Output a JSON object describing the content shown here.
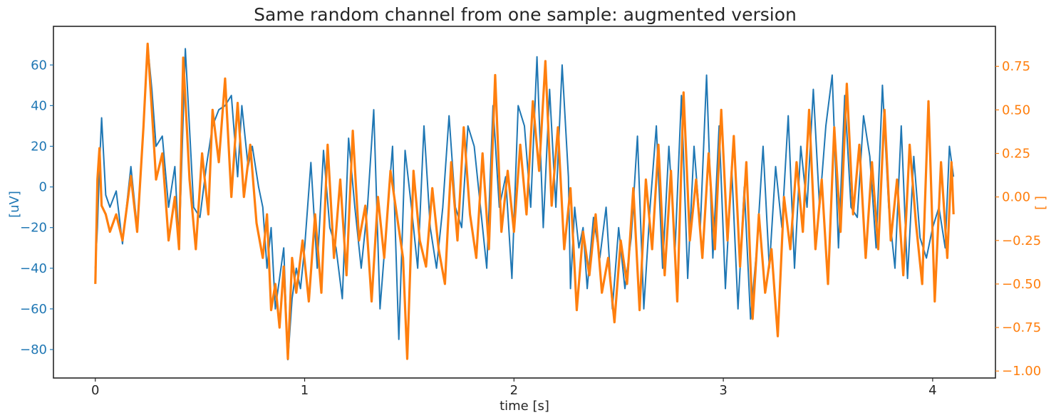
{
  "chart_data": {
    "type": "line",
    "title": "Same random channel from one sample: augmented version",
    "xlabel": "time [s]",
    "ylabel_left": "[uV]",
    "ylabel_right": "[ ]",
    "xlim": [
      -0.2,
      4.3
    ],
    "ylim_left": [
      -94,
      79
    ],
    "ylim_right": [
      -1.04,
      0.98
    ],
    "xticks": [
      0,
      1,
      2,
      3,
      4
    ],
    "yticks_left": [
      -80,
      -60,
      -40,
      -20,
      0,
      20,
      40,
      60
    ],
    "yticks_right": [
      -1.0,
      -0.75,
      -0.5,
      -0.25,
      0.0,
      0.25,
      0.5,
      0.75
    ],
    "xtick_labels": [
      "0",
      "1",
      "2",
      "3",
      "4"
    ],
    "ytick_labels_left": [
      "−80",
      "−60",
      "−40",
      "−20",
      "0",
      "20",
      "40",
      "60"
    ],
    "ytick_labels_right": [
      "−1.00",
      "−0.75",
      "−0.50",
      "−0.25",
      "0.00",
      "0.25",
      "0.50",
      "0.75"
    ],
    "grid": false,
    "legend": "none",
    "colors": {
      "left": "#1f77b4",
      "right": "#ff7f0e",
      "text": "#262626"
    },
    "series": [
      {
        "axis": "left",
        "color": "#1f77b4",
        "x": [
          0.0,
          0.01,
          0.02,
          0.03,
          0.05,
          0.07,
          0.1,
          0.13,
          0.17,
          0.2,
          0.23,
          0.25,
          0.27,
          0.29,
          0.32,
          0.35,
          0.38,
          0.4,
          0.43,
          0.47,
          0.5,
          0.53,
          0.56,
          0.59,
          0.62,
          0.65,
          0.68,
          0.7,
          0.73,
          0.75,
          0.78,
          0.8,
          0.82,
          0.84,
          0.86,
          0.88,
          0.9,
          0.92,
          0.94,
          0.96,
          0.98,
          1.0,
          1.03,
          1.06,
          1.09,
          1.12,
          1.15,
          1.18,
          1.21,
          1.24,
          1.27,
          1.3,
          1.33,
          1.36,
          1.39,
          1.42,
          1.45,
          1.48,
          1.51,
          1.54,
          1.57,
          1.6,
          1.63,
          1.66,
          1.69,
          1.72,
          1.75,
          1.78,
          1.81,
          1.84,
          1.87,
          1.9,
          1.93,
          1.96,
          1.99,
          2.02,
          2.05,
          2.08,
          2.11,
          2.14,
          2.17,
          2.2,
          2.23,
          2.26,
          2.27,
          2.29,
          2.31,
          2.33,
          2.35,
          2.38,
          2.41,
          2.44,
          2.47,
          2.5,
          2.53,
          2.56,
          2.59,
          2.62,
          2.65,
          2.68,
          2.71,
          2.74,
          2.77,
          2.8,
          2.83,
          2.86,
          2.89,
          2.92,
          2.95,
          2.98,
          3.01,
          3.04,
          3.07,
          3.1,
          3.13,
          3.16,
          3.19,
          3.22,
          3.25,
          3.28,
          3.31,
          3.34,
          3.37,
          3.4,
          3.43,
          3.46,
          3.49,
          3.52,
          3.55,
          3.58,
          3.61,
          3.64,
          3.67,
          3.7,
          3.73,
          3.76,
          3.79,
          3.82,
          3.85,
          3.88,
          3.91,
          3.94,
          3.97,
          4.0,
          4.03,
          4.06,
          4.08,
          4.1
        ],
        "y": [
          -40,
          -20,
          10,
          34,
          -4,
          -10,
          -2,
          -28,
          10,
          -20,
          30,
          70,
          48,
          20,
          25,
          -10,
          10,
          -30,
          68,
          -10,
          -15,
          10,
          30,
          38,
          40,
          45,
          5,
          40,
          10,
          20,
          0,
          -10,
          -40,
          -20,
          -60,
          -45,
          -30,
          -85,
          -55,
          -40,
          -50,
          -30,
          12,
          -40,
          18,
          -20,
          -30,
          -55,
          24,
          -10,
          -40,
          -10,
          38,
          -60,
          -20,
          20,
          -75,
          18,
          -10,
          -40,
          30,
          -20,
          -40,
          -10,
          35,
          -10,
          -20,
          30,
          20,
          -10,
          -40,
          40,
          -10,
          5,
          -45,
          40,
          30,
          -10,
          64,
          -20,
          48,
          -10,
          60,
          5,
          -50,
          -10,
          -30,
          -20,
          -50,
          -15,
          -35,
          -10,
          -60,
          -20,
          -50,
          -25,
          25,
          -60,
          -10,
          30,
          -40,
          20,
          -30,
          45,
          -45,
          20,
          -20,
          55,
          -35,
          30,
          -50,
          10,
          -60,
          0,
          -65,
          -30,
          20,
          -40,
          10,
          -20,
          35,
          -40,
          20,
          -10,
          48,
          -10,
          30,
          55,
          -30,
          45,
          -10,
          -15,
          35,
          15,
          -30,
          50,
          -10,
          -40,
          30,
          -45,
          15,
          -25,
          -35,
          -20,
          -10,
          -30,
          20,
          5
        ]
      },
      {
        "axis": "right",
        "color": "#ff7f0e",
        "x": [
          0.0,
          0.01,
          0.02,
          0.03,
          0.05,
          0.07,
          0.1,
          0.13,
          0.17,
          0.2,
          0.23,
          0.25,
          0.27,
          0.29,
          0.32,
          0.35,
          0.38,
          0.4,
          0.42,
          0.45,
          0.48,
          0.51,
          0.54,
          0.56,
          0.59,
          0.62,
          0.65,
          0.68,
          0.71,
          0.74,
          0.77,
          0.8,
          0.82,
          0.84,
          0.86,
          0.88,
          0.9,
          0.92,
          0.94,
          0.96,
          0.99,
          1.02,
          1.05,
          1.08,
          1.11,
          1.14,
          1.17,
          1.2,
          1.23,
          1.26,
          1.29,
          1.32,
          1.35,
          1.38,
          1.41,
          1.44,
          1.47,
          1.49,
          1.52,
          1.55,
          1.58,
          1.61,
          1.64,
          1.67,
          1.7,
          1.73,
          1.76,
          1.79,
          1.82,
          1.85,
          1.88,
          1.91,
          1.94,
          1.97,
          2.0,
          2.03,
          2.06,
          2.09,
          2.12,
          2.15,
          2.18,
          2.21,
          2.24,
          2.27,
          2.3,
          2.33,
          2.36,
          2.39,
          2.42,
          2.45,
          2.48,
          2.51,
          2.54,
          2.57,
          2.6,
          2.63,
          2.66,
          2.69,
          2.72,
          2.75,
          2.78,
          2.81,
          2.84,
          2.87,
          2.9,
          2.93,
          2.96,
          2.99,
          3.02,
          3.05,
          3.08,
          3.11,
          3.14,
          3.17,
          3.2,
          3.23,
          3.26,
          3.29,
          3.32,
          3.35,
          3.38,
          3.41,
          3.44,
          3.47,
          3.5,
          3.53,
          3.56,
          3.59,
          3.62,
          3.65,
          3.68,
          3.71,
          3.74,
          3.77,
          3.8,
          3.83,
          3.86,
          3.89,
          3.92,
          3.95,
          3.98,
          4.01,
          4.04,
          4.07,
          4.09,
          4.1
        ],
        "y": [
          -0.5,
          0.1,
          0.28,
          -0.05,
          -0.1,
          -0.2,
          -0.1,
          -0.25,
          0.12,
          -0.2,
          0.4,
          0.88,
          0.5,
          0.1,
          0.25,
          -0.25,
          0.0,
          -0.3,
          0.8,
          0.1,
          -0.3,
          0.25,
          -0.1,
          0.5,
          0.2,
          0.68,
          0.0,
          0.54,
          0.0,
          0.3,
          -0.15,
          -0.35,
          -0.1,
          -0.65,
          -0.5,
          -0.75,
          -0.4,
          -0.93,
          -0.35,
          -0.55,
          -0.25,
          -0.6,
          -0.1,
          -0.55,
          0.3,
          -0.35,
          0.1,
          -0.45,
          0.38,
          -0.25,
          -0.05,
          -0.6,
          0.0,
          -0.35,
          0.15,
          -0.1,
          -0.35,
          -0.93,
          0.15,
          -0.25,
          -0.4,
          0.05,
          -0.3,
          -0.5,
          0.2,
          -0.25,
          0.4,
          -0.1,
          -0.35,
          0.25,
          -0.3,
          0.7,
          -0.2,
          0.15,
          -0.2,
          0.3,
          -0.1,
          0.55,
          0.15,
          0.78,
          -0.05,
          0.4,
          -0.3,
          0.05,
          -0.65,
          -0.2,
          -0.45,
          -0.1,
          -0.55,
          -0.35,
          -0.72,
          -0.25,
          -0.5,
          0.05,
          -0.65,
          0.1,
          -0.3,
          0.3,
          -0.45,
          0.15,
          -0.6,
          0.6,
          -0.25,
          0.1,
          -0.35,
          0.25,
          -0.3,
          0.5,
          -0.25,
          0.35,
          -0.4,
          0.2,
          -0.7,
          -0.1,
          -0.55,
          -0.3,
          -0.8,
          0.0,
          -0.3,
          0.2,
          -0.2,
          0.5,
          -0.3,
          0.1,
          -0.5,
          0.4,
          -0.2,
          0.65,
          -0.1,
          0.3,
          -0.35,
          0.2,
          -0.3,
          0.5,
          -0.25,
          0.1,
          -0.45,
          0.3,
          -0.15,
          -0.5,
          0.55,
          -0.6,
          0.2,
          -0.35,
          0.2,
          -0.1
        ]
      }
    ]
  }
}
